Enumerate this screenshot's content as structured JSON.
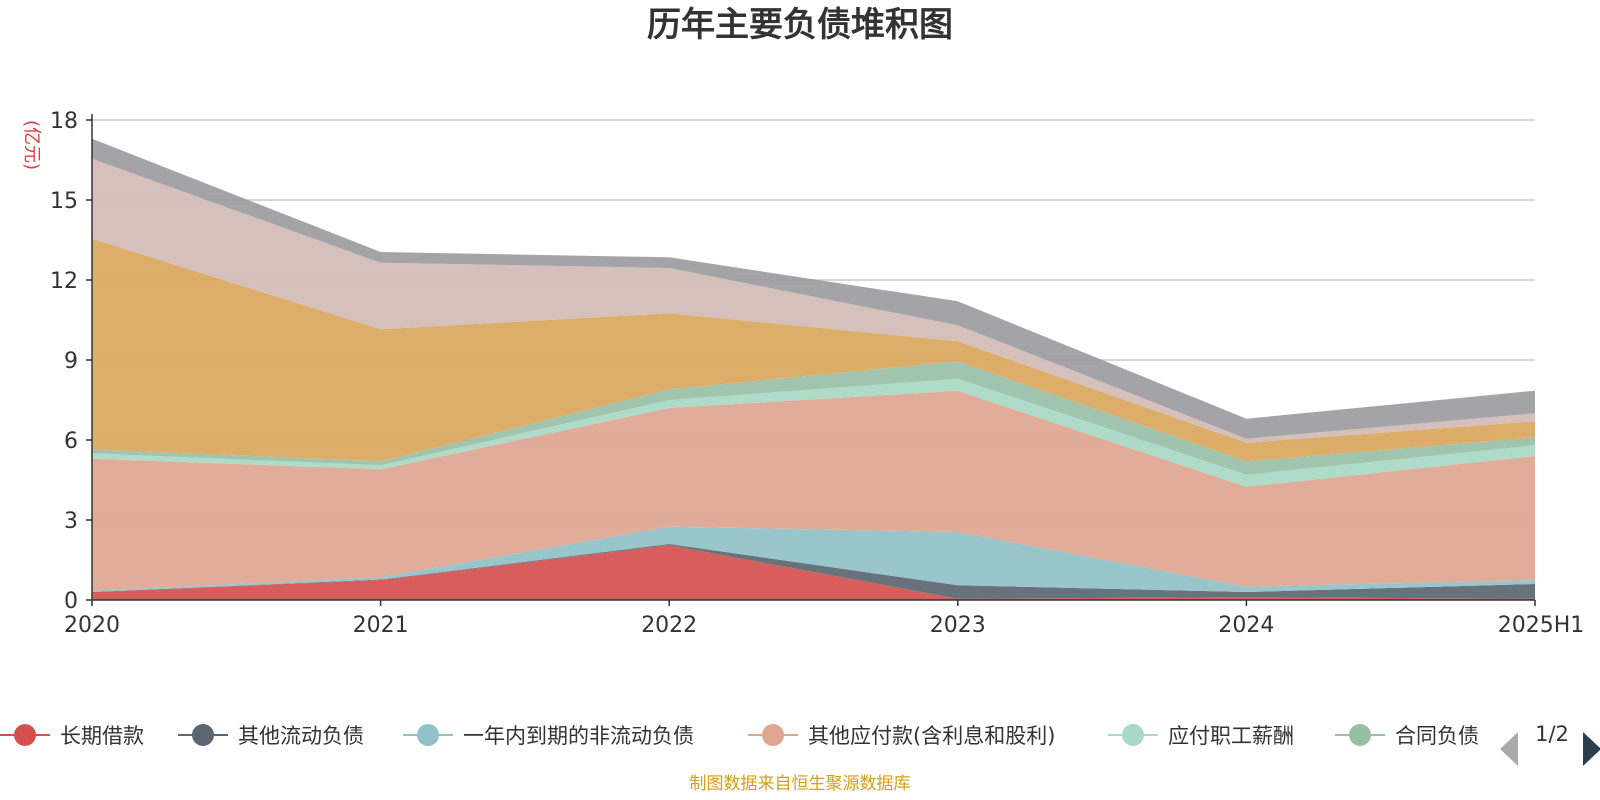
{
  "chart_data": {
    "type": "area",
    "title": "历年主要负债堆积图",
    "ylabel": "(亿元)",
    "xlabel": "",
    "stacked": true,
    "categories": [
      "2020",
      "2021",
      "2022",
      "2023",
      "2024",
      "2025H1"
    ],
    "y_ticks": [
      "0",
      "3",
      "6",
      "9",
      "12",
      "15",
      "18"
    ],
    "ylim": [
      0,
      18
    ],
    "grid": true,
    "legend_position": "bottom",
    "series": [
      {
        "name": "长期借款",
        "color": "#d4504e",
        "values": [
          0.3,
          0.75,
          2.05,
          0.05,
          0.1,
          0.05
        ]
      },
      {
        "name": "其他流动负债",
        "color": "#5b6670",
        "values": [
          0.0,
          0.02,
          0.05,
          0.5,
          0.2,
          0.55
        ]
      },
      {
        "name": "一年内到期的非流动负债",
        "color": "#8fc1c7",
        "values": [
          0.05,
          0.08,
          0.65,
          2.0,
          0.2,
          0.15
        ]
      },
      {
        "name": "其他应付款(含利息和股利)",
        "color": "#e0a591",
        "values": [
          4.95,
          4.05,
          4.45,
          5.3,
          3.75,
          4.65
        ]
      },
      {
        "name": "应付职工薪酬",
        "color": "#a8d9c4",
        "values": [
          0.2,
          0.15,
          0.3,
          0.45,
          0.45,
          0.4
        ]
      },
      {
        "name": "合同负债",
        "color": "#98bfa6",
        "values": [
          0.15,
          0.15,
          0.4,
          0.65,
          0.5,
          0.3
        ]
      },
      {
        "name": "",
        "color": "#daa75c",
        "values": [
          7.9,
          4.95,
          2.85,
          0.75,
          0.7,
          0.6
        ]
      },
      {
        "name": "",
        "color": "#d1bbb6",
        "values": [
          3.0,
          2.5,
          1.7,
          0.6,
          0.15,
          0.3
        ]
      },
      {
        "name": "",
        "color": "#9b9ba1",
        "values": [
          0.75,
          0.4,
          0.4,
          0.9,
          0.75,
          0.85
        ]
      }
    ]
  },
  "legend": {
    "items": [
      "长期借款",
      "其他流动负债",
      "一年内到期的非流动负债",
      "其他应付款(含利息和股利)",
      "应付职工薪酬",
      "合同负债"
    ],
    "pager_text": "1/2"
  },
  "footer": "制图数据来自恒生聚源数据库"
}
